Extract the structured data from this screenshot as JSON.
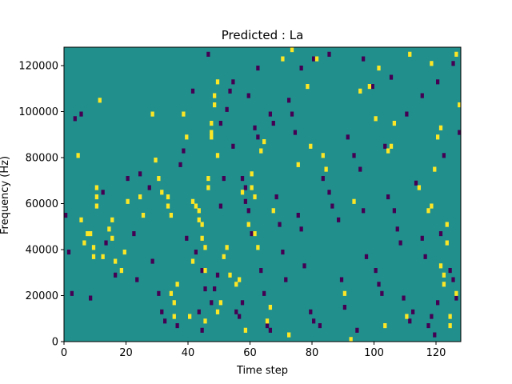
{
  "chart_data": {
    "type": "heatmap",
    "title": "Predicted : La",
    "xlabel": "Time step",
    "ylabel": "Frequency (Hz)",
    "xlim": [
      0,
      128
    ],
    "ylim": [
      0,
      128000
    ],
    "x_ticks": [
      0,
      20,
      40,
      60,
      80,
      100,
      120
    ],
    "y_ticks": [
      0,
      20000,
      40000,
      60000,
      80000,
      100000,
      120000
    ],
    "x_tick_labels": [
      "0",
      "20",
      "40",
      "60",
      "80",
      "100",
      "120"
    ],
    "y_tick_labels": [
      "0",
      "20000",
      "40000",
      "60000",
      "80000",
      "100000",
      "120000"
    ],
    "grid": false,
    "legend": "none",
    "n_time_steps": 128,
    "n_freq_bins": 64,
    "value_levels": [
      -1,
      0,
      1
    ],
    "colors": {
      "background": "#21908d",
      "low": "#440154",
      "high": "#fde725",
      "mid": "#21908d"
    },
    "high_cells": [
      [
        10,
        58000
      ],
      [
        10,
        62000
      ],
      [
        10,
        66000
      ],
      [
        9,
        40000
      ],
      [
        9,
        36000
      ],
      [
        8,
        46000
      ],
      [
        14,
        48000
      ],
      [
        15,
        52000
      ],
      [
        15,
        44000
      ],
      [
        16,
        34000
      ],
      [
        18,
        30000
      ],
      [
        19,
        38000
      ],
      [
        33,
        62000
      ],
      [
        33,
        58000
      ],
      [
        34,
        54000
      ],
      [
        34,
        20000
      ],
      [
        35,
        16000
      ],
      [
        35,
        10000
      ],
      [
        36,
        24000
      ],
      [
        40,
        10000
      ],
      [
        41,
        60000
      ],
      [
        42,
        58000
      ],
      [
        43,
        56000
      ],
      [
        43,
        52000
      ],
      [
        44,
        50000
      ],
      [
        44,
        44000
      ],
      [
        45,
        40000
      ],
      [
        45,
        30000
      ],
      [
        45,
        8000
      ],
      [
        46,
        70000
      ],
      [
        46,
        66000
      ],
      [
        47,
        94000
      ],
      [
        47,
        90000
      ],
      [
        47,
        88000
      ],
      [
        48,
        106000
      ],
      [
        48,
        102000
      ],
      [
        49,
        112000
      ],
      [
        49,
        80000
      ],
      [
        49,
        12000
      ],
      [
        50,
        16000
      ],
      [
        51,
        36000
      ],
      [
        52,
        40000
      ],
      [
        53,
        28000
      ],
      [
        55,
        24000
      ],
      [
        56,
        26000
      ],
      [
        58,
        4000
      ],
      [
        60,
        72000
      ],
      [
        60,
        66000
      ],
      [
        61,
        62000
      ],
      [
        61,
        46000
      ],
      [
        62,
        40000
      ],
      [
        63,
        82000
      ],
      [
        64,
        86000
      ],
      [
        65,
        8000
      ],
      [
        66,
        14000
      ],
      [
        72,
        2000
      ],
      [
        83,
        80000
      ],
      [
        90,
        20000
      ],
      [
        92,
        0
      ],
      [
        93,
        60000
      ],
      [
        100,
        96000
      ],
      [
        103,
        6000
      ],
      [
        104,
        82000
      ],
      [
        105,
        84000
      ],
      [
        110,
        10000
      ],
      [
        114,
        66000
      ],
      [
        117,
        56000
      ],
      [
        118,
        58000
      ],
      [
        119,
        74000
      ],
      [
        120,
        88000
      ],
      [
        121,
        92000
      ],
      [
        121,
        32000
      ],
      [
        122,
        28000
      ],
      [
        122,
        24000
      ],
      [
        123,
        42000
      ],
      [
        123,
        50000
      ],
      [
        124,
        10000
      ],
      [
        124,
        6000
      ],
      [
        126,
        20000
      ],
      [
        127,
        102000
      ],
      [
        4,
        80000
      ],
      [
        5,
        52000
      ],
      [
        6,
        42000
      ],
      [
        7,
        46000
      ],
      [
        11,
        104000
      ],
      [
        12,
        36000
      ],
      [
        20,
        60000
      ],
      [
        24,
        62000
      ],
      [
        25,
        54000
      ],
      [
        28,
        98000
      ],
      [
        29,
        78000
      ],
      [
        30,
        70000
      ],
      [
        31,
        64000
      ],
      [
        38,
        98000
      ],
      [
        39,
        88000
      ],
      [
        41,
        34000
      ],
      [
        57,
        64000
      ],
      [
        59,
        50000
      ],
      [
        67,
        56000
      ],
      [
        70,
        122000
      ],
      [
        73,
        126000
      ],
      [
        75,
        76000
      ],
      [
        78,
        110000
      ],
      [
        79,
        84000
      ],
      [
        81,
        122000
      ],
      [
        84,
        74000
      ],
      [
        95,
        108000
      ],
      [
        98,
        110000
      ],
      [
        101,
        118000
      ],
      [
        106,
        94000
      ],
      [
        111,
        124000
      ],
      [
        118,
        120000
      ],
      [
        126,
        124000
      ]
    ],
    "low_cells": [
      [
        0,
        54000
      ],
      [
        1,
        38000
      ],
      [
        2,
        20000
      ],
      [
        3,
        96000
      ],
      [
        5,
        98000
      ],
      [
        8,
        18000
      ],
      [
        12,
        64000
      ],
      [
        13,
        42000
      ],
      [
        16,
        28000
      ],
      [
        20,
        70000
      ],
      [
        22,
        46000
      ],
      [
        23,
        26000
      ],
      [
        24,
        72000
      ],
      [
        27,
        66000
      ],
      [
        28,
        34000
      ],
      [
        30,
        20000
      ],
      [
        31,
        12000
      ],
      [
        32,
        8000
      ],
      [
        36,
        6000
      ],
      [
        37,
        76000
      ],
      [
        38,
        82000
      ],
      [
        39,
        44000
      ],
      [
        42,
        38000
      ],
      [
        43,
        12000
      ],
      [
        44,
        4000
      ],
      [
        47,
        16000
      ],
      [
        48,
        22000
      ],
      [
        50,
        58000
      ],
      [
        50,
        94000
      ],
      [
        52,
        100000
      ],
      [
        53,
        108000
      ],
      [
        54,
        112000
      ],
      [
        55,
        12000
      ],
      [
        56,
        10000
      ],
      [
        57,
        16000
      ],
      [
        57,
        70000
      ],
      [
        58,
        66000
      ],
      [
        58,
        60000
      ],
      [
        59,
        56000
      ],
      [
        60,
        46000
      ],
      [
        61,
        92000
      ],
      [
        62,
        88000
      ],
      [
        63,
        30000
      ],
      [
        64,
        20000
      ],
      [
        65,
        6000
      ],
      [
        66,
        4000
      ],
      [
        68,
        62000
      ],
      [
        69,
        50000
      ],
      [
        70,
        38000
      ],
      [
        71,
        26000
      ],
      [
        72,
        104000
      ],
      [
        73,
        98000
      ],
      [
        74,
        90000
      ],
      [
        75,
        54000
      ],
      [
        76,
        48000
      ],
      [
        77,
        32000
      ],
      [
        79,
        12000
      ],
      [
        80,
        8000
      ],
      [
        82,
        6000
      ],
      [
        83,
        70000
      ],
      [
        85,
        64000
      ],
      [
        86,
        58000
      ],
      [
        88,
        52000
      ],
      [
        89,
        26000
      ],
      [
        90,
        14000
      ],
      [
        91,
        88000
      ],
      [
        93,
        80000
      ],
      [
        94,
        4000
      ],
      [
        95,
        74000
      ],
      [
        96,
        56000
      ],
      [
        97,
        36000
      ],
      [
        99,
        110000
      ],
      [
        100,
        30000
      ],
      [
        101,
        24000
      ],
      [
        102,
        20000
      ],
      [
        103,
        84000
      ],
      [
        104,
        62000
      ],
      [
        106,
        56000
      ],
      [
        107,
        48000
      ],
      [
        108,
        42000
      ],
      [
        109,
        18000
      ],
      [
        111,
        8000
      ],
      [
        112,
        12000
      ],
      [
        113,
        68000
      ],
      [
        115,
        44000
      ],
      [
        116,
        36000
      ],
      [
        117,
        6000
      ],
      [
        118,
        10000
      ],
      [
        119,
        2000
      ],
      [
        120,
        16000
      ],
      [
        121,
        46000
      ],
      [
        122,
        80000
      ],
      [
        124,
        30000
      ],
      [
        125,
        26000
      ],
      [
        126,
        18000
      ],
      [
        127,
        90000
      ],
      [
        49,
        28000
      ],
      [
        51,
        70000
      ],
      [
        54,
        84000
      ],
      [
        59,
        106000
      ],
      [
        62,
        118000
      ],
      [
        66,
        98000
      ],
      [
        67,
        94000
      ],
      [
        76,
        118000
      ],
      [
        80,
        122000
      ],
      [
        85,
        124000
      ],
      [
        96,
        122000
      ],
      [
        105,
        114000
      ],
      [
        110,
        98000
      ],
      [
        115,
        106000
      ],
      [
        120,
        112000
      ],
      [
        125,
        120000
      ],
      [
        46,
        124000
      ],
      [
        41,
        108000
      ],
      [
        44,
        30000
      ],
      [
        45,
        22000
      ]
    ]
  }
}
